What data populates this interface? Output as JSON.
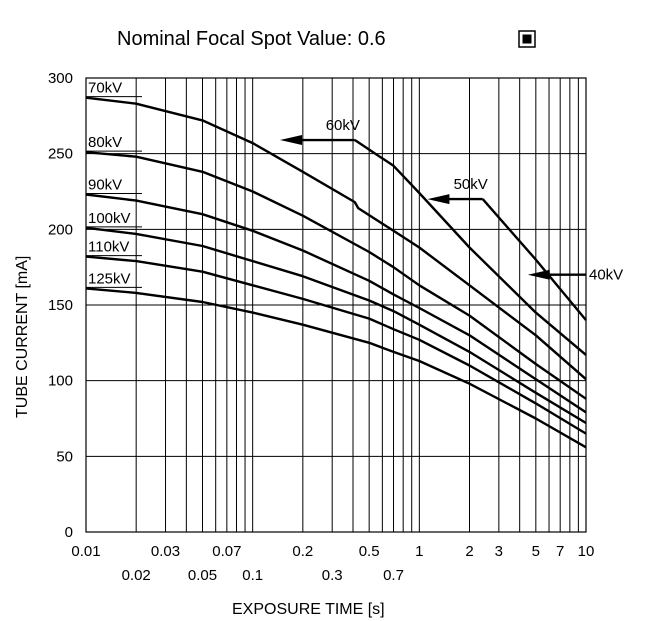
{
  "chart_data": {
    "type": "line",
    "title": "Nominal Focal Spot Value: 0.6",
    "title_symbol": "square-dot-icon",
    "xlabel": "EXPOSURE TIME  [s]",
    "ylabel": "TUBE CURRENT [mA]",
    "x_scale": "log",
    "xlim": [
      0.01,
      10
    ],
    "ylim": [
      0,
      300
    ],
    "grid": true,
    "x_ticks_upper": [
      "0.01",
      "0.03",
      "0.07",
      "0.2",
      "0.5",
      "1",
      "2",
      "3",
      "5",
      "7",
      "10"
    ],
    "x_ticks_lower": [
      "0.02",
      "0.05",
      "0.1",
      "0.3",
      "0.7"
    ],
    "y_ticks": [
      "0",
      "50",
      "100",
      "150",
      "200",
      "250",
      "300"
    ],
    "series": [
      {
        "name": "70kV",
        "x": [
          0.01,
          0.02,
          0.05,
          0.1,
          0.2,
          0.41,
          0.43,
          0.7,
          1,
          2,
          5,
          10
        ],
        "y": [
          287,
          283,
          272,
          257,
          238,
          218,
          214,
          199,
          188,
          163,
          130,
          101
        ]
      },
      {
        "name": "80kV",
        "x": [
          0.01,
          0.02,
          0.05,
          0.1,
          0.2,
          0.5,
          0.7,
          1,
          2,
          5,
          10
        ],
        "y": [
          251,
          248,
          238,
          225,
          209,
          185,
          175,
          163,
          143,
          111,
          88
        ]
      },
      {
        "name": "90kV",
        "x": [
          0.01,
          0.02,
          0.05,
          0.1,
          0.2,
          0.5,
          0.7,
          1,
          2,
          5,
          10
        ],
        "y": [
          223,
          219,
          210,
          199,
          186,
          166,
          157,
          148,
          130,
          101,
          79
        ]
      },
      {
        "name": "100kV",
        "x": [
          0.01,
          0.02,
          0.05,
          0.1,
          0.2,
          0.5,
          0.7,
          1,
          2,
          5,
          10
        ],
        "y": [
          201,
          197,
          189,
          179,
          169,
          153,
          146,
          137,
          119,
          92,
          72
        ]
      },
      {
        "name": "110kV",
        "x": [
          0.01,
          0.02,
          0.05,
          0.1,
          0.2,
          0.5,
          0.7,
          1,
          2,
          5,
          10
        ],
        "y": [
          182,
          179,
          172,
          163,
          154,
          141,
          134,
          127,
          110,
          85,
          65
        ]
      },
      {
        "name": "125kV",
        "x": [
          0.01,
          0.02,
          0.05,
          0.1,
          0.2,
          0.5,
          0.7,
          1,
          2,
          5,
          10
        ],
        "y": [
          161,
          158,
          152,
          145,
          137,
          125,
          119,
          113,
          98,
          75,
          56
        ]
      },
      {
        "name": "60kV",
        "x": [
          0.41,
          0.7,
          1,
          2,
          5,
          10
        ],
        "y": [
          259,
          242,
          224,
          188,
          145,
          117
        ]
      },
      {
        "name": "50kV",
        "x": [
          2.4,
          5,
          10
        ],
        "y": [
          220,
          180,
          140
        ]
      }
    ],
    "pointers": [
      {
        "label": "60kV",
        "from": [
          0.41,
          259
        ],
        "to": [
          0.15,
          259
        ]
      },
      {
        "label": "50kV",
        "from": [
          2.4,
          220
        ],
        "to": [
          1.15,
          220
        ]
      },
      {
        "label": "40kV",
        "from": [
          10,
          170
        ],
        "to": [
          4.6,
          170
        ]
      }
    ]
  }
}
